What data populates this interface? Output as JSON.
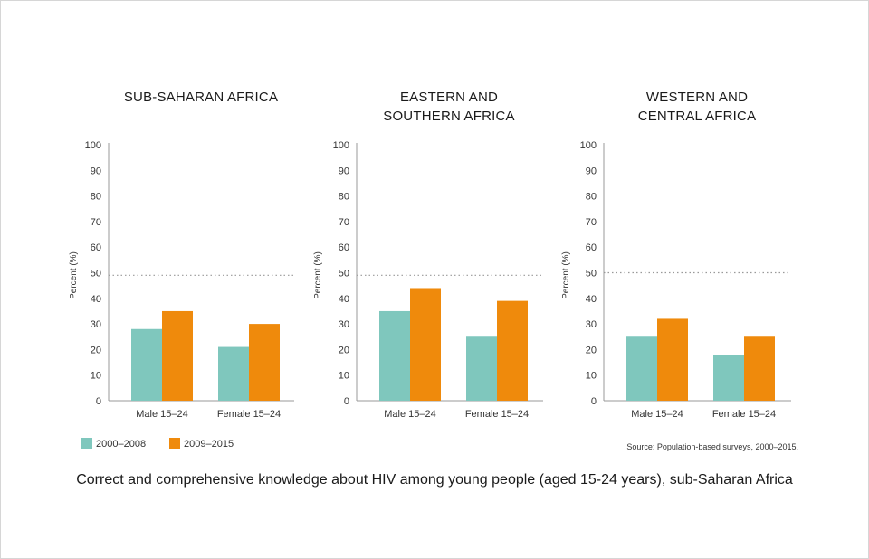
{
  "chart_data": [
    {
      "type": "bar",
      "title_lines": [
        "SUB-SAHARAN AFRICA"
      ],
      "ylabel": "Percent (%)",
      "ylim": [
        0,
        100
      ],
      "yticks": [
        0,
        10,
        20,
        30,
        40,
        50,
        60,
        70,
        80,
        90,
        100
      ],
      "reference_line": 49,
      "categories": [
        "Male 15–24",
        "Female 15–24"
      ],
      "series": [
        {
          "name": "2000–2008",
          "values": [
            28,
            21
          ]
        },
        {
          "name": "2009–2015",
          "values": [
            35,
            30
          ]
        }
      ]
    },
    {
      "type": "bar",
      "title_lines": [
        "EASTERN AND",
        "SOUTHERN AFRICA"
      ],
      "ylabel": "Percent (%)",
      "ylim": [
        0,
        100
      ],
      "yticks": [
        0,
        10,
        20,
        30,
        40,
        50,
        60,
        70,
        80,
        90,
        100
      ],
      "reference_line": 49,
      "categories": [
        "Male 15–24",
        "Female 15–24"
      ],
      "series": [
        {
          "name": "2000–2008",
          "values": [
            35,
            25
          ]
        },
        {
          "name": "2009–2015",
          "values": [
            44,
            39
          ]
        }
      ]
    },
    {
      "type": "bar",
      "title_lines": [
        "WESTERN AND",
        "CENTRAL AFRICA"
      ],
      "ylabel": "Percent (%)",
      "ylim": [
        0,
        100
      ],
      "yticks": [
        0,
        10,
        20,
        30,
        40,
        50,
        60,
        70,
        80,
        90,
        100
      ],
      "reference_line": 50,
      "categories": [
        "Male 15–24",
        "Female 15–24"
      ],
      "series": [
        {
          "name": "2000–2008",
          "values": [
            25,
            18
          ]
        },
        {
          "name": "2009–2015",
          "values": [
            32,
            25
          ]
        }
      ]
    }
  ],
  "legend": [
    {
      "label": "2000–2008",
      "color": "#7fc7bd"
    },
    {
      "label": "2009–2015",
      "color": "#ef8a0c"
    }
  ],
  "colors": {
    "series_1": "#7fc7bd",
    "series_2": "#ef8a0c",
    "axis": "#999999",
    "reference_line": "#999999"
  },
  "source": "Source: Population-based surveys, 2000–2015.",
  "caption": "Correct and comprehensive knowledge about HIV among young people (aged 15-24 years), sub-Saharan Africa"
}
